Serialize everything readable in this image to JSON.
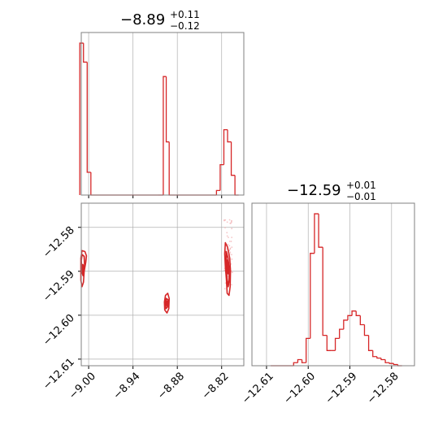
{
  "colors": {
    "accent": "#d62728",
    "grid": "#b0b0b0",
    "frame": "#808080",
    "scatter": "#f1aeb0"
  },
  "chart_data": [
    {
      "type": "histogram",
      "panel": "param1-marginal",
      "title": {
        "value": "−8.89",
        "upper": "+0.11",
        "lower": "−0.12"
      },
      "xlim": [
        -9.01,
        -8.79
      ],
      "ylim": [
        0,
        1.07
      ],
      "grid": true,
      "x_ticks": [
        -9.0,
        -8.94,
        -8.88,
        -8.82
      ],
      "bins": [
        {
          "x0": -9.012,
          "x1": -9.007,
          "y": 1.0
        },
        {
          "x0": -9.007,
          "x1": -9.002,
          "y": 0.875
        },
        {
          "x0": -9.002,
          "x1": -8.997,
          "y": 0.15
        },
        {
          "x0": -8.997,
          "x1": -8.906,
          "y": 0.0
        },
        {
          "x0": -8.906,
          "x1": -8.899,
          "y": 0.0
        },
        {
          "x0": -8.899,
          "x1": -8.895,
          "y": 0.78
        },
        {
          "x0": -8.895,
          "x1": -8.891,
          "y": 0.35
        },
        {
          "x0": -8.891,
          "x1": -8.827,
          "y": 0.0
        },
        {
          "x0": -8.827,
          "x1": -8.822,
          "y": 0.03
        },
        {
          "x0": -8.822,
          "x1": -8.817,
          "y": 0.2
        },
        {
          "x0": -8.817,
          "x1": -8.812,
          "y": 0.43
        },
        {
          "x0": -8.812,
          "x1": -8.807,
          "y": 0.35
        },
        {
          "x0": -8.807,
          "x1": -8.802,
          "y": 0.13
        },
        {
          "x0": -8.802,
          "x1": -8.797,
          "y": 0.0
        }
      ]
    },
    {
      "type": "histogram",
      "panel": "param2-marginal",
      "title": {
        "value": "−12.59",
        "upper": "+0.01",
        "lower": "−0.01"
      },
      "xlim": [
        -12.6135,
        -12.5745
      ],
      "ylim": [
        0,
        1.07
      ],
      "grid": true,
      "x_ticks": [
        -12.61,
        -12.6,
        -12.59,
        -12.58
      ],
      "bins": [
        {
          "x0": -12.609,
          "x1": -12.6035,
          "y": 0.0
        },
        {
          "x0": -12.6035,
          "x1": -12.6025,
          "y": 0.02
        },
        {
          "x0": -12.6025,
          "x1": -12.6015,
          "y": 0.04
        },
        {
          "x0": -12.6015,
          "x1": -12.6005,
          "y": 0.02
        },
        {
          "x0": -12.6005,
          "x1": -12.5995,
          "y": 0.18
        },
        {
          "x0": -12.5995,
          "x1": -12.5985,
          "y": 0.74
        },
        {
          "x0": -12.5985,
          "x1": -12.5975,
          "y": 1.0
        },
        {
          "x0": -12.5975,
          "x1": -12.5965,
          "y": 0.78
        },
        {
          "x0": -12.5965,
          "x1": -12.5955,
          "y": 0.2
        },
        {
          "x0": -12.5955,
          "x1": -12.5945,
          "y": 0.1
        },
        {
          "x0": -12.5945,
          "x1": -12.5935,
          "y": 0.1
        },
        {
          "x0": -12.5935,
          "x1": -12.5925,
          "y": 0.18
        },
        {
          "x0": -12.5925,
          "x1": -12.5915,
          "y": 0.24
        },
        {
          "x0": -12.5915,
          "x1": -12.5905,
          "y": 0.3
        },
        {
          "x0": -12.5905,
          "x1": -12.5895,
          "y": 0.33
        },
        {
          "x0": -12.5895,
          "x1": -12.5885,
          "y": 0.36
        },
        {
          "x0": -12.5885,
          "x1": -12.5875,
          "y": 0.33
        },
        {
          "x0": -12.5875,
          "x1": -12.5865,
          "y": 0.27
        },
        {
          "x0": -12.5865,
          "x1": -12.5855,
          "y": 0.2
        },
        {
          "x0": -12.5855,
          "x1": -12.5845,
          "y": 0.1
        },
        {
          "x0": -12.5845,
          "x1": -12.5835,
          "y": 0.06
        },
        {
          "x0": -12.5835,
          "x1": -12.5825,
          "y": 0.05
        },
        {
          "x0": -12.5825,
          "x1": -12.5815,
          "y": 0.04
        },
        {
          "x0": -12.5815,
          "x1": -12.5805,
          "y": 0.02
        },
        {
          "x0": -12.5805,
          "x1": -12.5795,
          "y": 0.015
        },
        {
          "x0": -12.5795,
          "x1": -12.5785,
          "y": 0.008
        },
        {
          "x0": -12.5785,
          "x1": -12.5775,
          "y": 0.0
        }
      ]
    },
    {
      "type": "contour",
      "panel": "joint-2d",
      "xlim": [
        -9.01,
        -8.79
      ],
      "ylim": [
        -12.6115,
        -12.5745
      ],
      "grid": true,
      "x_ticks": [
        -9.0,
        -8.94,
        -8.88,
        -8.82
      ],
      "y_ticks": [
        -12.58,
        -12.59,
        -12.6,
        -12.61
      ],
      "regions": [
        {
          "name": "mode-left",
          "contours": [
            [
              [
                -9.009,
                -12.5853
              ],
              [
                -9.005,
                -12.5855
              ],
              [
                -9.003,
                -12.5865
              ],
              [
                -9.004,
                -12.588
              ],
              [
                -9.006,
                -12.59
              ],
              [
                -9.007,
                -12.5925
              ],
              [
                -9.009,
                -12.5935
              ],
              [
                -9.0105,
                -12.592
              ],
              [
                -9.0105,
                -12.587
              ]
            ],
            [
              [
                -9.009,
                -12.5862
              ],
              [
                -9.006,
                -12.5866
              ],
              [
                -9.0055,
                -12.5885
              ],
              [
                -9.0075,
                -12.591
              ],
              [
                -9.0095,
                -12.59
              ],
              [
                -9.01,
                -12.5875
              ]
            ],
            [
              [
                -9.008,
                -12.5885
              ],
              [
                -9.0065,
                -12.5895
              ],
              [
                -9.0075,
                -12.5905
              ],
              [
                -9.009,
                -12.5898
              ]
            ]
          ]
        },
        {
          "name": "mode-middle",
          "contours": [
            [
              [
                -8.896,
                -12.5955
              ],
              [
                -8.893,
                -12.595
              ],
              [
                -8.891,
                -12.5962
              ],
              [
                -8.8915,
                -12.5985
              ],
              [
                -8.894,
                -12.5995
              ],
              [
                -8.897,
                -12.5988
              ],
              [
                -8.8975,
                -12.597
              ]
            ],
            [
              [
                -8.895,
                -12.5962
              ],
              [
                -8.8925,
                -12.5965
              ],
              [
                -8.8925,
                -12.598
              ],
              [
                -8.8955,
                -12.5985
              ],
              [
                -8.8962,
                -12.5972
              ]
            ],
            [
              [
                -8.8945,
                -12.5968
              ],
              [
                -8.8935,
                -12.597
              ],
              [
                -8.894,
                -12.5978
              ],
              [
                -8.895,
                -12.5975
              ]
            ]
          ]
        },
        {
          "name": "mode-right",
          "contours": [
            [
              [
                -8.815,
                -12.5835
              ],
              [
                -8.812,
                -12.5845
              ],
              [
                -8.809,
                -12.587
              ],
              [
                -8.808,
                -12.59
              ],
              [
                -8.8085,
                -12.5935
              ],
              [
                -8.81,
                -12.5955
              ],
              [
                -8.8125,
                -12.595
              ],
              [
                -8.8135,
                -12.592
              ],
              [
                -8.815,
                -12.589
              ],
              [
                -8.8158,
                -12.586
              ]
            ],
            [
              [
                -8.8138,
                -12.5855
              ],
              [
                -8.8115,
                -12.587
              ],
              [
                -8.8098,
                -12.5895
              ],
              [
                -8.8098,
                -12.592
              ],
              [
                -8.8112,
                -12.5935
              ],
              [
                -8.8128,
                -12.5915
              ],
              [
                -8.8142,
                -12.5885
              ]
            ],
            [
              [
                -8.8128,
                -12.5875
              ],
              [
                -8.811,
                -12.589
              ],
              [
                -8.8112,
                -12.5905
              ],
              [
                -8.8128,
                -12.59
              ],
              [
                -8.8135,
                -12.5885
              ]
            ]
          ]
        }
      ]
    }
  ]
}
